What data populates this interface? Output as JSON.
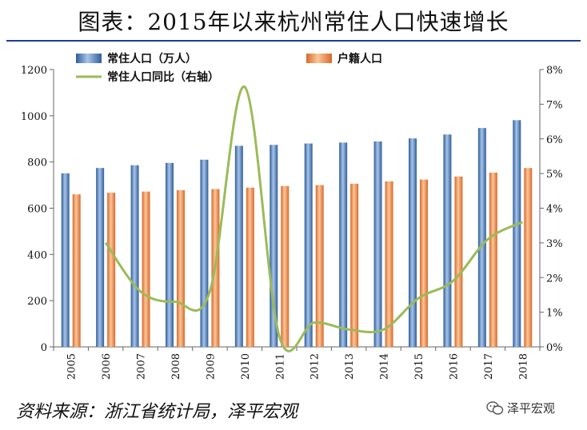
{
  "header": {
    "title": "图表：2015年以来杭州常住人口快速增长"
  },
  "footer": {
    "source": "资料来源：浙江省统计局，泽平宏观",
    "watermark": "泽平宏观"
  },
  "colors": {
    "resident": "#4f81bd",
    "hukou": "#f79646",
    "yoy": "#9bbb59",
    "rule": "#1c3f8e"
  },
  "icons": {
    "watermark": "wechat-icon"
  },
  "chart_data": {
    "type": "bar",
    "categories": [
      "2005",
      "2006",
      "2007",
      "2008",
      "2009",
      "2010",
      "2011",
      "2012",
      "2013",
      "2014",
      "2015",
      "2016",
      "2017",
      "2018"
    ],
    "series": [
      {
        "name": "常住人口（万人）",
        "type": "bar",
        "axis": "left",
        "values": [
          751,
          774,
          786,
          796,
          810,
          870,
          874,
          880,
          884,
          889,
          902,
          919,
          947,
          981
        ]
      },
      {
        "name": "户籍人口",
        "type": "bar",
        "axis": "left",
        "values": [
          660,
          667,
          672,
          678,
          683,
          689,
          696,
          700,
          706,
          716,
          724,
          737,
          754,
          774
        ]
      },
      {
        "name": "常住人口同比（右轴）",
        "type": "line",
        "axis": "right",
        "values": [
          null,
          3.0,
          1.6,
          1.3,
          1.6,
          7.5,
          0.3,
          0.7,
          0.5,
          0.5,
          1.4,
          1.9,
          3.1,
          3.6
        ]
      }
    ],
    "ylim_left": [
      0,
      1200
    ],
    "yticks_left": [
      "0",
      "200",
      "400",
      "600",
      "800",
      "1000",
      "1200"
    ],
    "ylim_right": [
      0,
      8
    ],
    "yticks_right": [
      "0%",
      "1%",
      "2%",
      "3%",
      "4%",
      "5%",
      "6%",
      "7%",
      "8%"
    ],
    "legend_position": "top",
    "grid": false
  }
}
